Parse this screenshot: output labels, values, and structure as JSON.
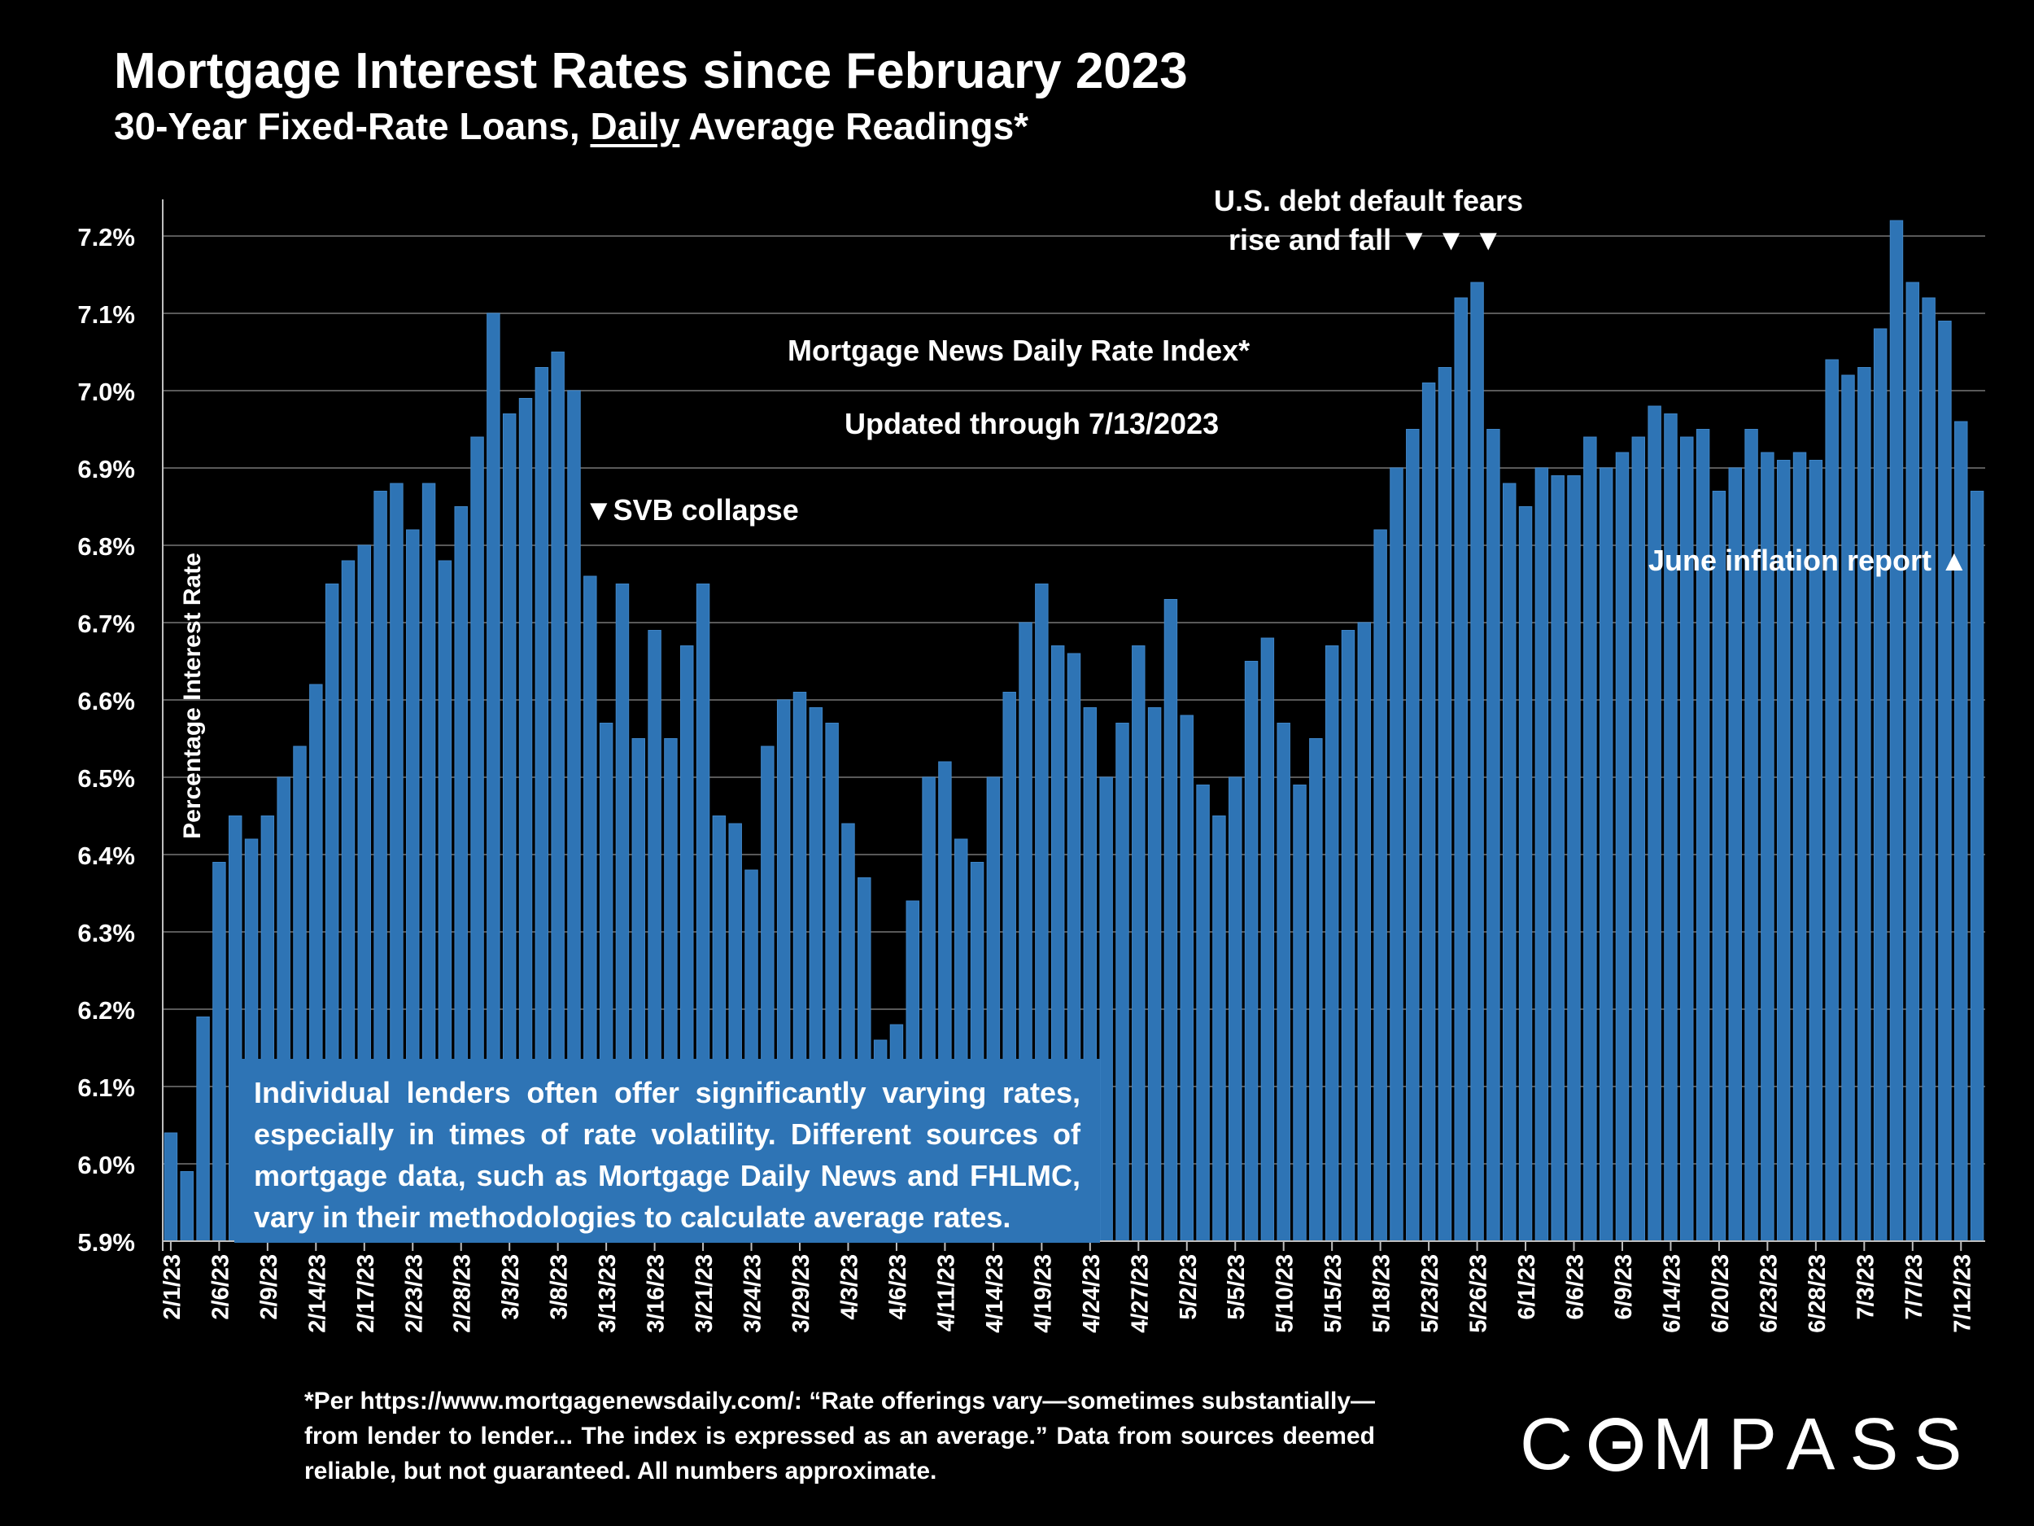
{
  "title": "Mortgage Interest Rates since February 2023",
  "subtitle_pre": "30-Year Fixed-Rate Loans, ",
  "subtitle_underlined": "Daily",
  "subtitle_post": " Average Readings*",
  "annotations": {
    "debt_line1": "U.S. debt default fears",
    "debt_line2": "rise and fall ▼ ▼ ▼",
    "index_label": "Mortgage News Daily Rate Index*",
    "updated": "Updated through 7/13/2023",
    "svb": "▼SVB collapse",
    "june": "June inflation report ▲"
  },
  "note_box": "Individual lenders often offer significantly varying rates, especially in times of rate volatility. Different sources of mortgage data, such as Mortgage Daily News and FHLMC, vary in their methodologies to calculate average rates.",
  "footnote": "*Per https://www.mortgagenewsdaily.com/: “Rate offerings vary—sometimes substantially—from lender to lender... The index is expressed as an average.” Data from sources deemed reliable, but not guaranteed. All numbers approximate.",
  "logo": {
    "pre": "C",
    "post": "MPASS"
  },
  "colors": {
    "bar": "#2e74b5",
    "bar_edge": "#3f85c6",
    "grid": "#595959",
    "axis": "#bfbfbf",
    "text": "#ffffff"
  },
  "chart_data": {
    "type": "bar",
    "title": "Mortgage Interest Rates since February 2023",
    "ylabel": "Percentage Interest  Rate",
    "xlabel": "",
    "ylim": [
      5.9,
      7.2
    ],
    "yticks": [
      5.9,
      6.0,
      6.1,
      6.2,
      6.3,
      6.4,
      6.5,
      6.6,
      6.7,
      6.8,
      6.9,
      7.0,
      7.1,
      7.2
    ],
    "ytick_labels": [
      "5.9%",
      "6.0%",
      "6.1%",
      "6.2%",
      "6.3%",
      "6.4%",
      "6.5%",
      "6.6%",
      "6.7%",
      "6.8%",
      "6.9%",
      "7.0%",
      "7.1%",
      "7.2%"
    ],
    "xtick_labels": [
      "2/1/23",
      "2/6/23",
      "2/9/23",
      "2/14/23",
      "2/17/23",
      "2/23/23",
      "2/28/23",
      "3/3/23",
      "3/8/23",
      "3/13/23",
      "3/16/23",
      "3/21/23",
      "3/24/23",
      "3/29/23",
      "4/3/23",
      "4/6/23",
      "4/11/23",
      "4/14/23",
      "4/19/23",
      "4/24/23",
      "4/27/23",
      "5/2/23",
      "5/5/23",
      "5/10/23",
      "5/15/23",
      "5/18/23",
      "5/23/23",
      "5/26/23",
      "6/1/23",
      "6/6/23",
      "6/9/23",
      "6/14/23",
      "6/20/23",
      "6/23/23",
      "6/28/23",
      "7/3/23",
      "7/7/23",
      "7/12/23"
    ],
    "xtick_every": 3,
    "series": [
      {
        "name": "Mortgage News Daily Rate Index",
        "values": [
          6.04,
          5.99,
          6.19,
          6.39,
          6.45,
          6.42,
          6.45,
          6.5,
          6.54,
          6.62,
          6.75,
          6.78,
          6.8,
          6.87,
          6.88,
          6.82,
          6.88,
          6.78,
          6.85,
          6.94,
          7.1,
          6.97,
          6.99,
          7.03,
          7.05,
          7.0,
          6.76,
          6.57,
          6.75,
          6.55,
          6.69,
          6.55,
          6.67,
          6.75,
          6.45,
          6.44,
          6.38,
          6.54,
          6.6,
          6.61,
          6.59,
          6.57,
          6.44,
          6.37,
          6.16,
          6.18,
          6.34,
          6.5,
          6.52,
          6.42,
          6.39,
          6.5,
          6.61,
          6.7,
          6.75,
          6.67,
          6.66,
          6.59,
          6.5,
          6.57,
          6.67,
          6.59,
          6.73,
          6.58,
          6.49,
          6.45,
          6.5,
          6.65,
          6.68,
          6.57,
          6.49,
          6.55,
          6.67,
          6.69,
          6.7,
          6.82,
          6.9,
          6.95,
          7.01,
          7.03,
          7.12,
          7.14,
          6.95,
          6.88,
          6.85,
          6.9,
          6.89,
          6.89,
          6.94,
          6.9,
          6.92,
          6.94,
          6.98,
          6.97,
          6.94,
          6.95,
          6.87,
          6.9,
          6.95,
          6.92,
          6.91,
          6.92,
          6.91,
          7.04,
          7.02,
          7.03,
          7.08,
          7.22,
          7.14,
          7.12,
          7.09,
          6.96,
          6.87
        ]
      }
    ]
  }
}
